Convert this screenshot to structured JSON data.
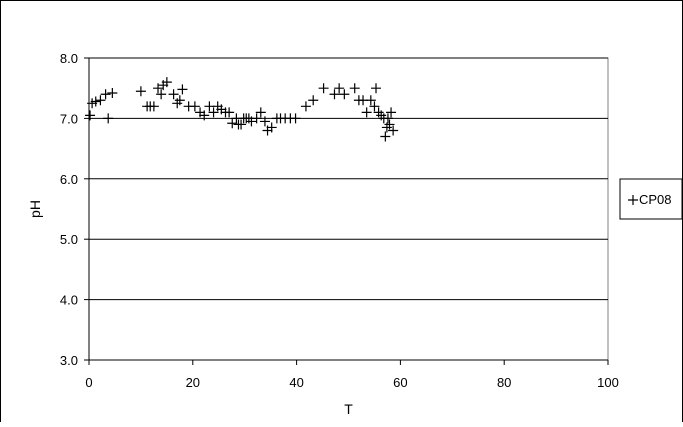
{
  "chart_data": {
    "type": "scatter",
    "title": "",
    "xlabel": "T",
    "ylabel": "pH",
    "xlim": [
      0,
      100
    ],
    "ylim": [
      3.0,
      8.0
    ],
    "x_ticks": [
      0,
      20,
      40,
      60,
      80,
      100
    ],
    "x_tick_labels": [
      "0",
      "20",
      "40",
      "60",
      "80",
      "100"
    ],
    "y_ticks": [
      3.0,
      4.0,
      5.0,
      6.0,
      7.0,
      8.0
    ],
    "y_tick_labels": [
      "3.0",
      "4.0",
      "5.0",
      "6.0",
      "7.0",
      "8.0"
    ],
    "grid": "horizontal",
    "legend_position": "right",
    "marker": "plus",
    "marker_color": "#000000",
    "series": [
      {
        "name": "CP08",
        "points": [
          [
            0.2,
            7.05
          ],
          [
            0.6,
            7.25
          ],
          [
            1.3,
            7.28
          ],
          [
            2.2,
            7.3
          ],
          [
            3.2,
            7.4
          ],
          [
            3.7,
            7.0
          ],
          [
            4.5,
            7.42
          ],
          [
            10.0,
            7.45
          ],
          [
            11.2,
            7.2
          ],
          [
            11.8,
            7.2
          ],
          [
            12.5,
            7.2
          ],
          [
            13.3,
            7.5
          ],
          [
            13.9,
            7.4
          ],
          [
            14.3,
            7.55
          ],
          [
            15.0,
            7.6
          ],
          [
            16.3,
            7.4
          ],
          [
            17.0,
            7.25
          ],
          [
            17.5,
            7.3
          ],
          [
            18.0,
            7.48
          ],
          [
            19.2,
            7.2
          ],
          [
            20.4,
            7.2
          ],
          [
            21.4,
            7.1
          ],
          [
            22.2,
            7.05
          ],
          [
            23.2,
            7.2
          ],
          [
            24.0,
            7.1
          ],
          [
            24.8,
            7.2
          ],
          [
            25.5,
            7.15
          ],
          [
            26.3,
            7.1
          ],
          [
            27.0,
            7.1
          ],
          [
            27.6,
            6.92
          ],
          [
            28.4,
            7.0
          ],
          [
            28.8,
            6.9
          ],
          [
            29.3,
            6.9
          ],
          [
            29.8,
            7.0
          ],
          [
            30.3,
            7.0
          ],
          [
            30.8,
            7.0
          ],
          [
            31.3,
            6.95
          ],
          [
            32.3,
            7.0
          ],
          [
            33.1,
            7.1
          ],
          [
            33.9,
            6.95
          ],
          [
            34.4,
            6.8
          ],
          [
            35.2,
            6.85
          ],
          [
            36.2,
            7.0
          ],
          [
            36.9,
            7.0
          ],
          [
            37.8,
            7.0
          ],
          [
            38.8,
            7.0
          ],
          [
            39.8,
            7.0
          ],
          [
            41.8,
            7.2
          ],
          [
            43.2,
            7.3
          ],
          [
            45.2,
            7.5
          ],
          [
            47.3,
            7.4
          ],
          [
            48.2,
            7.5
          ],
          [
            49.2,
            7.4
          ],
          [
            51.2,
            7.5
          ],
          [
            52.0,
            7.3
          ],
          [
            52.8,
            7.3
          ],
          [
            53.5,
            7.1
          ],
          [
            54.3,
            7.3
          ],
          [
            55.0,
            7.2
          ],
          [
            55.3,
            7.5
          ],
          [
            55.8,
            7.1
          ],
          [
            56.3,
            7.05
          ],
          [
            56.8,
            7.0
          ],
          [
            57.1,
            6.7
          ],
          [
            57.4,
            6.85
          ],
          [
            57.6,
            7.0
          ],
          [
            57.9,
            6.9
          ],
          [
            58.2,
            7.1
          ],
          [
            58.6,
            6.8
          ]
        ]
      }
    ]
  }
}
